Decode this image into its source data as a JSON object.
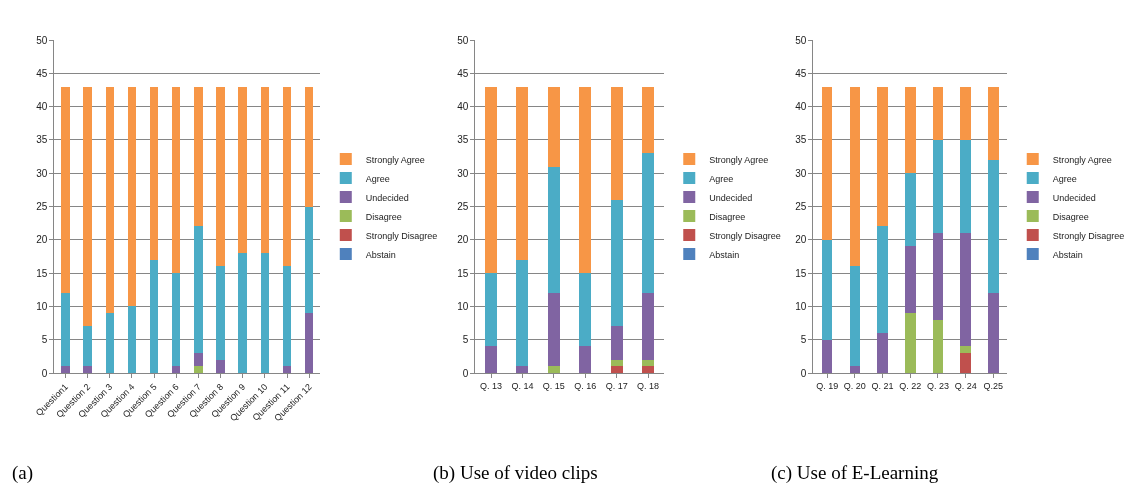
{
  "chart_data": [
    {
      "type": "bar",
      "stacked": true,
      "categories": [
        "Question1",
        "Question 2",
        "Question 3",
        "Question 4",
        "Question 5",
        "Question 6",
        "Question 7",
        "Question 8",
        "Question 9",
        "Question 10",
        "Question 11",
        "Question 12"
      ],
      "ylim": [
        0,
        50
      ],
      "yticks": [
        0,
        5,
        10,
        15,
        20,
        25,
        30,
        35,
        40,
        45,
        50
      ],
      "grid": "y",
      "legend": "right",
      "annotations": [
        "(a)"
      ],
      "series": [
        {
          "name": "Abstain",
          "color": "#4f81bd",
          "values": [
            0,
            0,
            0,
            0,
            0,
            0,
            0,
            0,
            0,
            0,
            0,
            0
          ]
        },
        {
          "name": "Strongly Disagree",
          "color": "#c0504d",
          "values": [
            0,
            0,
            0,
            0,
            0,
            0,
            0,
            0,
            0,
            0,
            0,
            0
          ]
        },
        {
          "name": "Disagree",
          "color": "#9bbb59",
          "values": [
            0,
            0,
            0,
            0,
            0,
            0,
            1,
            0,
            0,
            0,
            0,
            0
          ]
        },
        {
          "name": "Undecided",
          "color": "#8064a2",
          "values": [
            1,
            1,
            0,
            0,
            0,
            1,
            2,
            2,
            0,
            0,
            1,
            9
          ]
        },
        {
          "name": "Agree",
          "color": "#4bacc6",
          "values": [
            11,
            6,
            9,
            10,
            17,
            14,
            19,
            14,
            18,
            18,
            15,
            16
          ]
        },
        {
          "name": "Strongly Agree",
          "color": "#f79646",
          "values": [
            31,
            36,
            34,
            33,
            26,
            28,
            21,
            27,
            25,
            25,
            27,
            18
          ]
        }
      ]
    },
    {
      "type": "bar",
      "stacked": true,
      "categories": [
        "Q. 13",
        "Q. 14",
        "Q. 15",
        "Q. 16",
        "Q. 17",
        "Q. 18"
      ],
      "ylim": [
        0,
        50
      ],
      "yticks": [
        0,
        5,
        10,
        15,
        20,
        25,
        30,
        35,
        40,
        45,
        50
      ],
      "grid": "y",
      "legend": "right",
      "annotations": [
        "(b) Use of video clips"
      ],
      "series": [
        {
          "name": "Abstain",
          "color": "#4f81bd",
          "values": [
            0,
            0,
            0,
            0,
            0,
            0
          ]
        },
        {
          "name": "Strongly Disagree",
          "color": "#c0504d",
          "values": [
            0,
            0,
            0,
            0,
            1,
            1
          ]
        },
        {
          "name": "Disagree",
          "color": "#9bbb59",
          "values": [
            0,
            0,
            1,
            0,
            1,
            1
          ]
        },
        {
          "name": "Undecided",
          "color": "#8064a2",
          "values": [
            4,
            1,
            11,
            4,
            5,
            10
          ]
        },
        {
          "name": "Agree",
          "color": "#4bacc6",
          "values": [
            11,
            16,
            19,
            11,
            19,
            21
          ]
        },
        {
          "name": "Strongly Agree",
          "color": "#f79646",
          "values": [
            28,
            26,
            12,
            28,
            17,
            10
          ]
        }
      ]
    },
    {
      "type": "bar",
      "stacked": true,
      "categories": [
        "Q. 19",
        "Q. 20",
        "Q. 21",
        "Q. 22",
        "Q. 23",
        "Q. 24",
        "Q.25"
      ],
      "ylim": [
        0,
        50
      ],
      "yticks": [
        0,
        5,
        10,
        15,
        20,
        25,
        30,
        35,
        40,
        45,
        50
      ],
      "grid": "y",
      "legend": "right",
      "annotations": [
        "(c) Use of E-Learning"
      ],
      "series": [
        {
          "name": "Abstain",
          "color": "#4f81bd",
          "values": [
            0,
            0,
            0,
            0,
            0,
            0,
            0
          ]
        },
        {
          "name": "Strongly Disagree",
          "color": "#c0504d",
          "values": [
            0,
            0,
            0,
            0,
            0,
            3,
            0
          ]
        },
        {
          "name": "Disagree",
          "color": "#9bbb59",
          "values": [
            0,
            0,
            0,
            9,
            8,
            1,
            0
          ]
        },
        {
          "name": "Undecided",
          "color": "#8064a2",
          "values": [
            5,
            1,
            6,
            10,
            13,
            17,
            12
          ]
        },
        {
          "name": "Agree",
          "color": "#4bacc6",
          "values": [
            15,
            15,
            16,
            11,
            14,
            14,
            20
          ]
        },
        {
          "name": "Strongly Agree",
          "color": "#f79646",
          "values": [
            23,
            27,
            21,
            13,
            8,
            8,
            11
          ]
        }
      ]
    }
  ]
}
